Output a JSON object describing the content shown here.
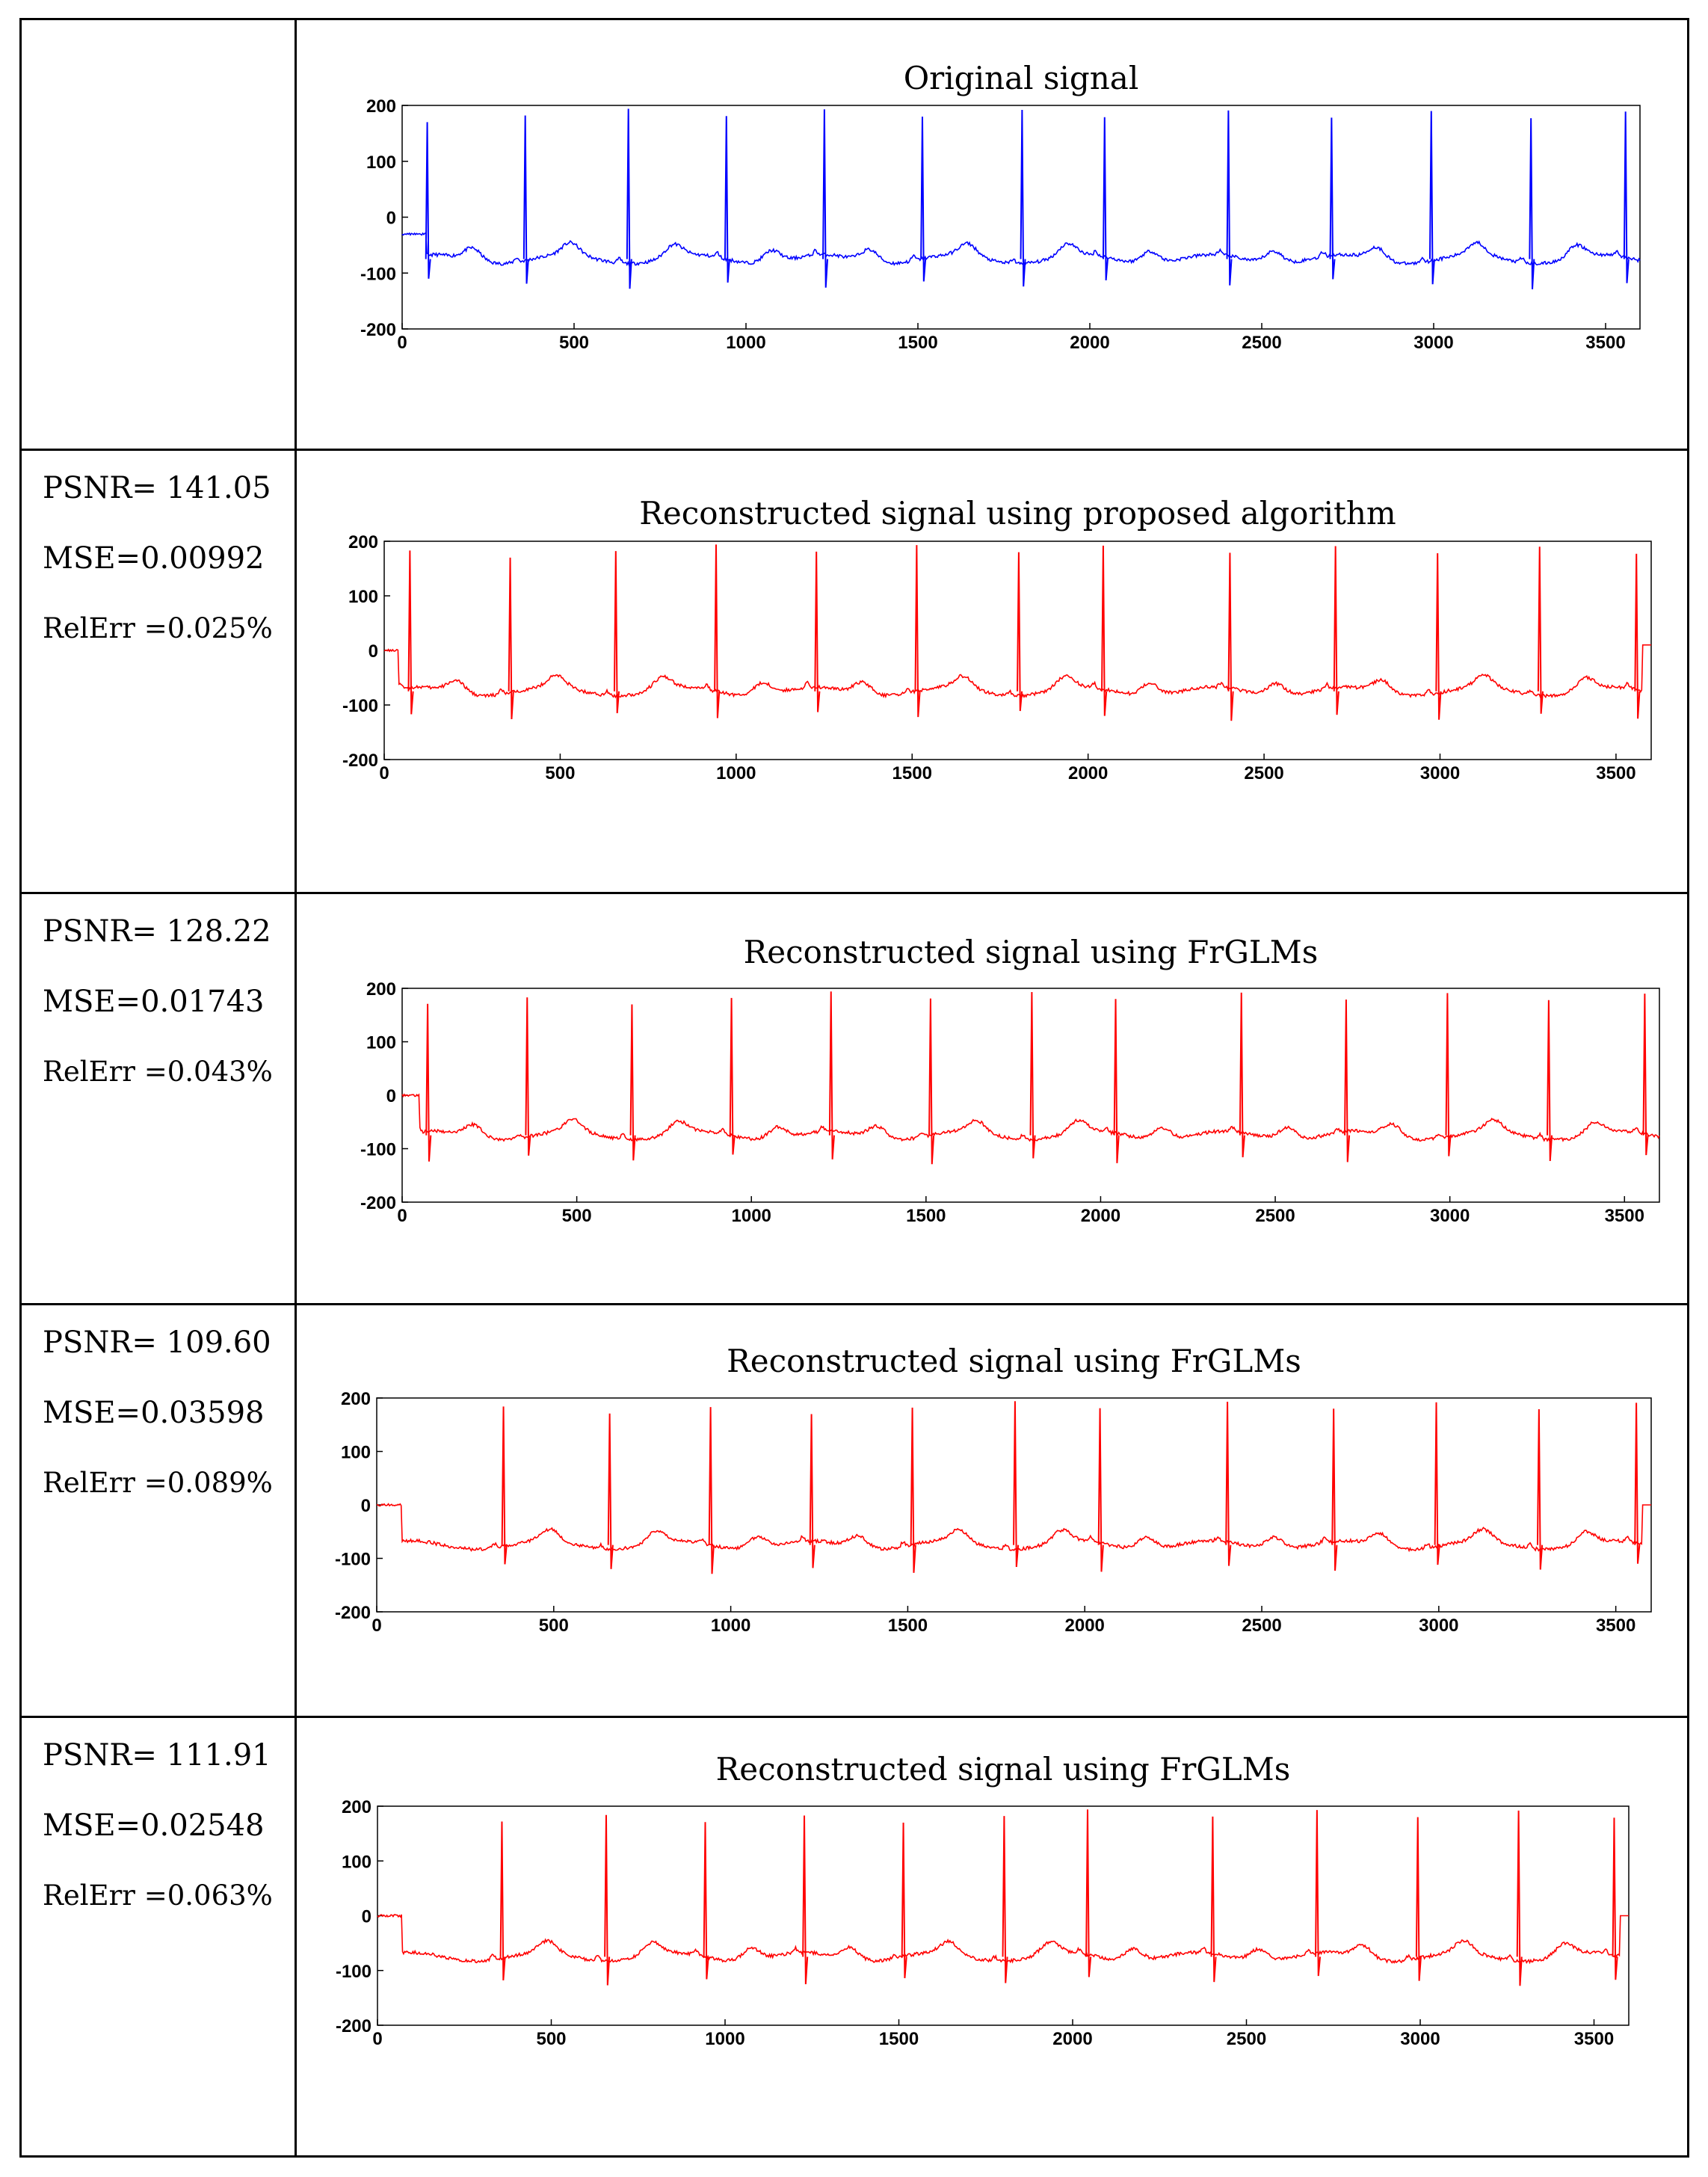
{
  "colors": {
    "original": "#0000ff",
    "reconstructed": "#ff0000",
    "grid": "#000000"
  },
  "panels": [
    {
      "metrics": [],
      "chart_data": {
        "type": "line",
        "title": "Original signal",
        "color": "#0000ff",
        "xlim": [
          0,
          3600
        ],
        "ylim": [
          -200,
          200
        ],
        "xticks": [
          0,
          500,
          1000,
          1500,
          2000,
          2500,
          3000,
          3500
        ],
        "yticks": [
          -200,
          -100,
          0,
          100,
          200
        ],
        "xlabel": "",
        "ylabel": "",
        "r_peaks": [
          75,
          360,
          660,
          945,
          1230,
          1515,
          1805,
          2045,
          2405,
          2705,
          2995,
          3285,
          3560
        ],
        "baseline": -75,
        "start_value": -30,
        "start_len": 70
      }
    },
    {
      "metrics": [
        {
          "text": "PSNR= 141.05"
        },
        {
          "text": "MSE=0.00992"
        },
        {
          "text": "RelErr =0.025%",
          "small": true
        }
      ],
      "chart_data": {
        "type": "line",
        "title": "Reconstructed signal using proposed algorithm",
        "color": "#ff0000",
        "xlim": [
          0,
          3600
        ],
        "ylim": [
          -200,
          200
        ],
        "xticks": [
          0,
          500,
          1000,
          1500,
          2000,
          2500,
          3000,
          3500
        ],
        "yticks": [
          -200,
          -100,
          0,
          100,
          200
        ],
        "xlabel": "",
        "ylabel": "",
        "r_peaks": [
          75,
          360,
          660,
          945,
          1230,
          1515,
          1805,
          2045,
          2405,
          2705,
          2995,
          3285,
          3560
        ],
        "baseline": -75,
        "start_value": 0,
        "start_len": 40,
        "end_value": 10
      }
    },
    {
      "metrics": [
        {
          "text": "PSNR= 128.22"
        },
        {
          "text": "MSE=0.01743"
        },
        {
          "text": "RelErr =0.043%",
          "small": true
        }
      ],
      "chart_data": {
        "type": "line",
        "title": "Reconstructed signal using FrGLMs",
        "color": "#ff0000",
        "xlim": [
          0,
          3600
        ],
        "ylim": [
          -200,
          200
        ],
        "xticks": [
          0,
          500,
          1000,
          1500,
          2000,
          2500,
          3000,
          3500
        ],
        "yticks": [
          -200,
          -100,
          0,
          100,
          200
        ],
        "xlabel": "",
        "ylabel": "",
        "r_peaks": [
          75,
          360,
          660,
          945,
          1230,
          1515,
          1805,
          2045,
          2405,
          2705,
          2995,
          3285,
          3560
        ],
        "baseline": -75,
        "start_value": 0,
        "start_len": 50
      }
    },
    {
      "metrics": [
        {
          "text": "PSNR= 109.60"
        },
        {
          "text": "MSE=0.03598"
        },
        {
          "text": "RelErr =0.089%",
          "small": true
        }
      ],
      "chart_data": {
        "type": "line",
        "title": "Reconstructed signal using FrGLMs",
        "color": "#ff0000",
        "xlim": [
          0,
          3600
        ],
        "ylim": [
          -200,
          200
        ],
        "xticks": [
          0,
          500,
          1000,
          1500,
          2000,
          2500,
          3000,
          3500
        ],
        "yticks": [
          -200,
          -100,
          0,
          100,
          200
        ],
        "xlabel": "",
        "ylabel": "",
        "r_peaks": [
          360,
          660,
          945,
          1230,
          1515,
          1805,
          2045,
          2405,
          2705,
          2995,
          3285,
          3560
        ],
        "baseline": -75,
        "start_value": 0,
        "start_len": 70,
        "end_value": 0
      }
    },
    {
      "metrics": [
        {
          "text": "PSNR= 111.91"
        },
        {
          "text": "MSE=0.02548"
        },
        {
          "text": "RelErr =0.063%",
          "small": true
        }
      ],
      "chart_data": {
        "type": "line",
        "title": "Reconstructed signal using FrGLMs",
        "color": "#ff0000",
        "xlim": [
          0,
          3600
        ],
        "ylim": [
          -200,
          200
        ],
        "xticks": [
          0,
          500,
          1000,
          1500,
          2000,
          2500,
          3000,
          3500
        ],
        "yticks": [
          -200,
          -100,
          0,
          100,
          200
        ],
        "xlabel": "",
        "ylabel": "",
        "r_peaks": [
          360,
          660,
          945,
          1230,
          1515,
          1805,
          2045,
          2405,
          2705,
          2995,
          3285,
          3560
        ],
        "baseline": -75,
        "start_value": 0,
        "start_len": 70,
        "end_value": 0
      }
    }
  ]
}
